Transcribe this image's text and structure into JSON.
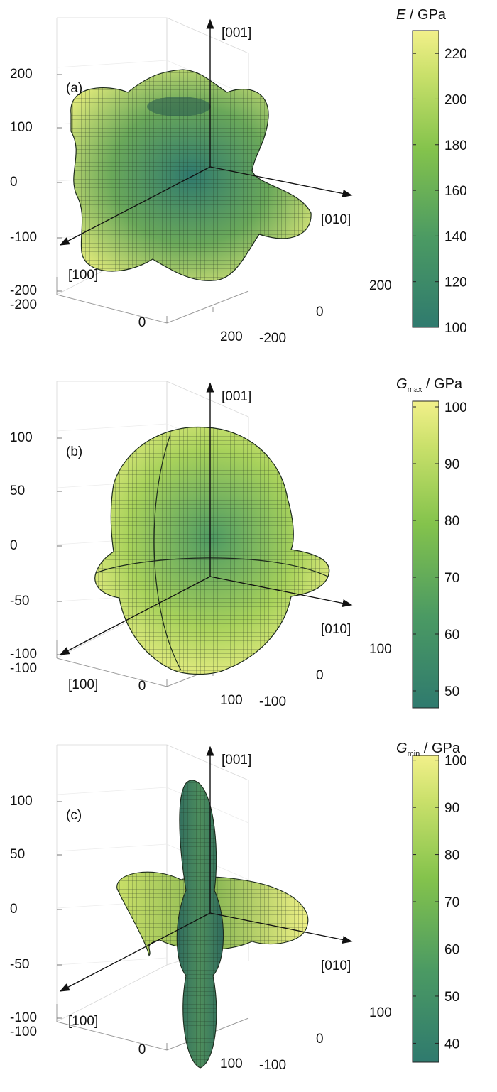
{
  "colors": {
    "low": "#2f7a6e",
    "mid": "#7fbf4a",
    "high": "#f2f08a",
    "axis": "#333333",
    "grid": "#e6e6e6"
  },
  "chart_data": [
    {
      "type": "surface3d",
      "panel_label": "(a)",
      "quantity": "E",
      "unit": "GPa",
      "colorbar": {
        "title_main": "E",
        "title_sub": "",
        "title_unit": " / GPa",
        "ticks": [
          220,
          200,
          180,
          160,
          140,
          120,
          100
        ],
        "range": [
          100,
          230
        ]
      },
      "z_ticks": [
        200,
        100,
        0,
        -100,
        -200
      ],
      "x_ticks": [
        -200,
        0,
        200
      ],
      "y_ticks": [
        200,
        0,
        -200
      ],
      "axis_labels": {
        "z": "[001]",
        "y": "[010]",
        "x": "[100]"
      },
      "shape": "cube-like: concave faces, lobes toward <111>",
      "value_range": [
        100,
        230
      ]
    },
    {
      "type": "surface3d",
      "panel_label": "(b)",
      "quantity": "G",
      "unit": "GPa",
      "colorbar": {
        "title_main": "G",
        "title_sub": "max",
        "title_unit": " / GPa",
        "ticks": [
          100,
          90,
          80,
          70,
          60,
          50
        ],
        "range": [
          47,
          101
        ]
      },
      "z_ticks": [
        100,
        50,
        0,
        -50,
        -100
      ],
      "x_ticks": [
        -100,
        0,
        100
      ],
      "y_ticks": [
        100,
        0,
        -100
      ],
      "axis_labels": {
        "z": "[001]",
        "y": "[010]",
        "x": "[100]"
      },
      "shape": "near-sphere with equatorial ridge and two vertical ridges",
      "value_range": [
        47,
        101
      ]
    },
    {
      "type": "surface3d",
      "panel_label": "(c)",
      "quantity": "G",
      "unit": "GPa",
      "colorbar": {
        "title_main": "G",
        "title_sub": "min",
        "title_unit": " / GPa",
        "ticks": [
          100,
          90,
          80,
          70,
          60,
          50,
          40
        ],
        "range": [
          36,
          101
        ]
      },
      "z_ticks": [
        100,
        50,
        0,
        -50,
        -100
      ],
      "x_ticks": [
        -100,
        0,
        100
      ],
      "y_ticks": [
        100,
        0,
        -100
      ],
      "axis_labels": {
        "z": "[001]",
        "y": "[010]",
        "x": "[100]"
      },
      "shape": "6-lobed cross: long vertical lobes, shorter horizontal lobes",
      "value_range": [
        36,
        101
      ]
    }
  ]
}
